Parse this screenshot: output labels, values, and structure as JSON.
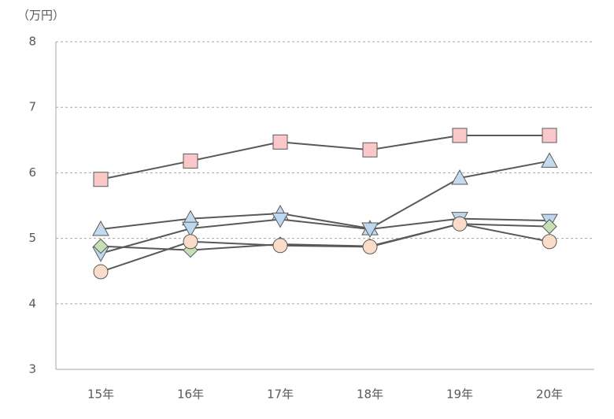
{
  "chart_data": {
    "type": "line",
    "y_label": "（万円）",
    "categories": [
      "15年",
      "16年",
      "17年",
      "18年",
      "19年",
      "20年"
    ],
    "series": [
      {
        "color": "#fac8c8",
        "marker": "square",
        "values": [
          5.9,
          6.18,
          6.47,
          6.35,
          6.57,
          6.57
        ]
      },
      {
        "color": "#c5d9f1",
        "marker": "triangle-up",
        "values": [
          5.14,
          5.3,
          5.38,
          5.15,
          5.92,
          6.18
        ]
      },
      {
        "color": "#bdd7ee",
        "marker": "triangle-down",
        "values": [
          4.77,
          5.15,
          5.29,
          5.14,
          5.3,
          5.27
        ]
      },
      {
        "color": "#c6e0b4",
        "marker": "diamond",
        "values": [
          4.88,
          4.82,
          4.91,
          4.88,
          5.22,
          5.18
        ]
      },
      {
        "color": "#fbdcc8",
        "marker": "circle",
        "values": [
          4.49,
          4.95,
          4.89,
          4.87,
          5.22,
          4.95
        ]
      }
    ],
    "ylim": [
      3,
      8
    ],
    "yticks": [
      3,
      4,
      5,
      6,
      7,
      8
    ],
    "grid": true
  }
}
